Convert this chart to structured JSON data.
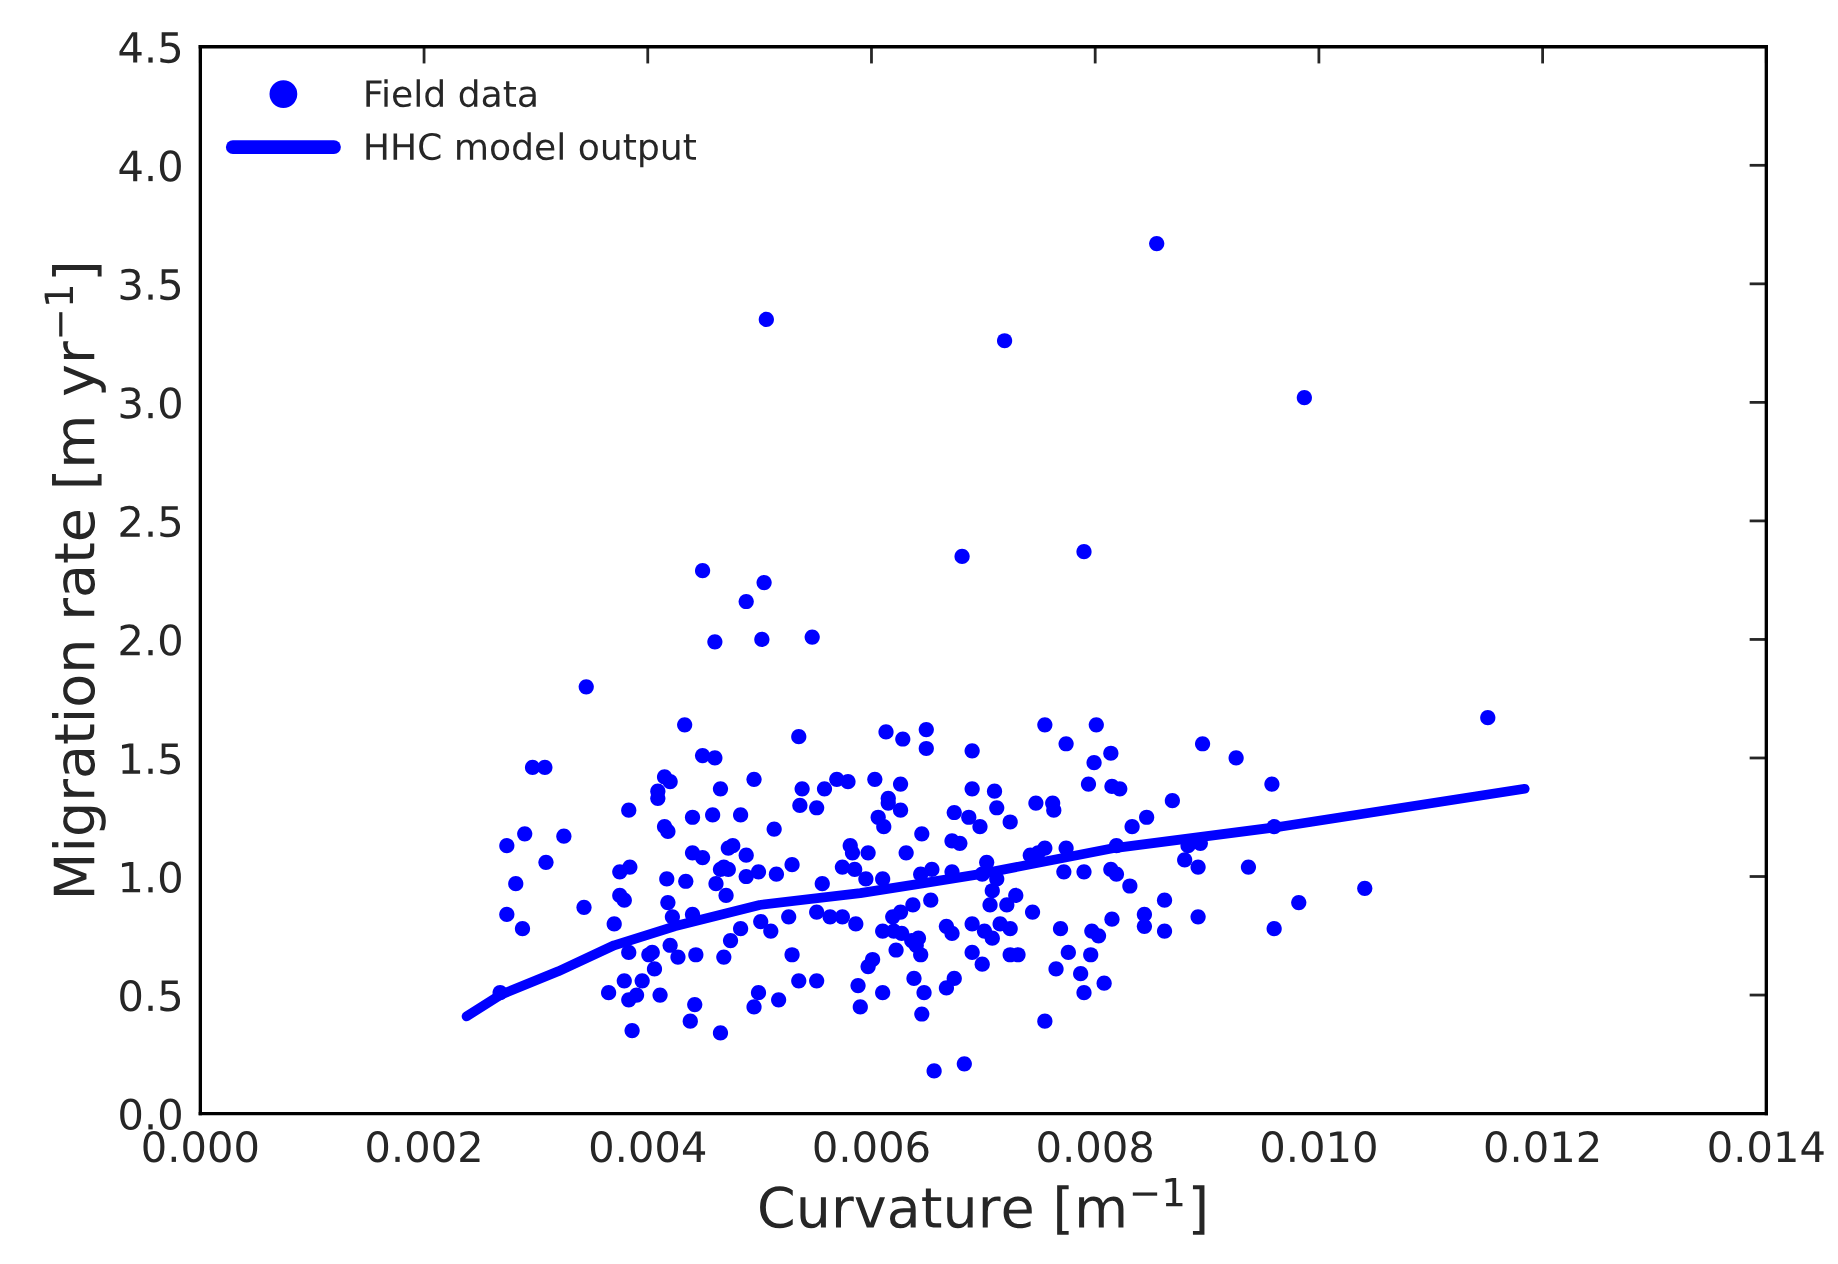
{
  "chart_data": {
    "type": "scatter",
    "xlabel": "Curvature [m$^{−1}$]",
    "ylabel": "Migration rate [m yr$^{−1}$]",
    "xlim": [
      0,
      0.014
    ],
    "ylim": [
      0,
      4.5
    ],
    "xticks": [
      {
        "value": 0,
        "label": "0.000"
      },
      {
        "value": 0.002,
        "label": "0.002"
      },
      {
        "value": 0.004,
        "label": "0.004"
      },
      {
        "value": 0.006,
        "label": "0.006"
      },
      {
        "value": 0.008,
        "label": "0.008"
      },
      {
        "value": 0.01,
        "label": "0.010"
      },
      {
        "value": 0.012,
        "label": "0.012"
      },
      {
        "value": 0.014,
        "label": "0.014"
      }
    ],
    "yticks": [
      {
        "value": 0,
        "label": "0.0"
      },
      0.5,
      {
        "value": 1,
        "label": "1.0"
      },
      1.5,
      {
        "value": 2,
        "label": "2.0"
      },
      2.5,
      {
        "value": 3,
        "label": "3.0"
      },
      3.5,
      {
        "value": 4,
        "label": "4.0"
      },
      4.5
    ],
    "grid": false,
    "legend": "top left",
    "series": [
      {
        "name": "Field data",
        "color": "#0000ff",
        "marker": "circle",
        "x": [
          0.00855,
          0.00506,
          0.00719,
          0.00987,
          0.00449,
          0.00504,
          0.00488,
          0.00547,
          0.0046,
          0.00502,
          0.00681,
          0.0079,
          0.00345,
          0.01151,
          0.00433,
          0.00535,
          0.00613,
          0.00628,
          0.00297,
          0.00308,
          0.00449,
          0.0046,
          0.00415,
          0.0042,
          0.00409,
          0.00409,
          0.00495,
          0.00465,
          0.00538,
          0.00558,
          0.00569,
          0.00579,
          0.00603,
          0.00626,
          0.00615,
          0.00615,
          0.00626,
          0.00383,
          0.0044,
          0.00458,
          0.00483,
          0.00536,
          0.00551,
          0.00606,
          0.0029,
          0.00325,
          0.00274,
          0.00415,
          0.00418,
          0.00513,
          0.00611,
          0.0044,
          0.00449,
          0.00472,
          0.00476,
          0.00488,
          0.00581,
          0.00583,
          0.00597,
          0.00631,
          0.00309,
          0.00375,
          0.00384,
          0.00465,
          0.00472,
          0.00468,
          0.00488,
          0.00499,
          0.00515,
          0.00529,
          0.00574,
          0.00585,
          0.00282,
          0.00417,
          0.00434,
          0.00461,
          0.00556,
          0.00595,
          0.0061,
          0.00375,
          0.00379,
          0.0047,
          0.00274,
          0.00343,
          0.00288,
          0.00418,
          0.00422,
          0.0044,
          0.0037,
          0.00551,
          0.00563,
          0.00574,
          0.00586,
          0.00501,
          0.0051,
          0.00526,
          0.00483,
          0.00474,
          0.00383,
          0.00401,
          0.00404,
          0.0042,
          0.00427,
          0.00443,
          0.00468,
          0.00529,
          0.00597,
          0.00601,
          0.00406,
          0.00379,
          0.00395,
          0.00365,
          0.00383,
          0.0039,
          0.00411,
          0.00535,
          0.00551,
          0.00499,
          0.00495,
          0.00517,
          0.00588,
          0.0059,
          0.0061,
          0.00442,
          0.00438,
          0.00386,
          0.00465,
          0.00268,
          0.00649,
          0.00649,
          0.00755,
          0.00801,
          0.00774,
          0.00799,
          0.00814,
          0.0069,
          0.00896,
          0.00926,
          0.00958,
          0.0069,
          0.0071,
          0.00674,
          0.00687,
          0.00697,
          0.00712,
          0.00724,
          0.00747,
          0.00762,
          0.00763,
          0.00794,
          0.00815,
          0.00822,
          0.00869,
          0.00846,
          0.00833,
          0.00645,
          0.00672,
          0.00679,
          0.00742,
          0.00749,
          0.00755,
          0.00774,
          0.00819,
          0.00883,
          0.00894,
          0.0088,
          0.0096,
          0.00644,
          0.00654,
          0.00672,
          0.00699,
          0.00703,
          0.00712,
          0.00772,
          0.0079,
          0.00814,
          0.00819,
          0.00892,
          0.00937,
          0.00831,
          0.00708,
          0.00729,
          0.00706,
          0.00721,
          0.00744,
          0.00653,
          0.00637,
          0.00626,
          0.00619,
          0.0061,
          0.00862,
          0.00844,
          0.00844,
          0.00892,
          0.00862,
          0.00982,
          0.0096,
          0.0069,
          0.00701,
          0.00715,
          0.00724,
          0.00708,
          0.00667,
          0.00672,
          0.0062,
          0.00627,
          0.00636,
          0.00642,
          0.00622,
          0.0064,
          0.00644,
          0.00769,
          0.00797,
          0.00803,
          0.00815,
          0.0069,
          0.00699,
          0.00724,
          0.00731,
          0.00776,
          0.00765,
          0.00796,
          0.00787,
          0.00808,
          0.0079,
          0.00638,
          0.00647,
          0.00674,
          0.00667,
          0.00645,
          0.00755,
          0.00656,
          0.00683,
          0.01041
        ],
        "values": [
          3.67,
          3.35,
          3.26,
          3.02,
          2.29,
          2.24,
          2.16,
          2.01,
          1.99,
          2.0,
          2.35,
          2.37,
          1.8,
          1.67,
          1.64,
          1.59,
          1.61,
          1.58,
          1.46,
          1.46,
          1.51,
          1.5,
          1.42,
          1.4,
          1.36,
          1.33,
          1.41,
          1.37,
          1.37,
          1.37,
          1.41,
          1.4,
          1.41,
          1.39,
          1.33,
          1.31,
          1.28,
          1.28,
          1.25,
          1.26,
          1.26,
          1.3,
          1.29,
          1.25,
          1.18,
          1.17,
          1.13,
          1.21,
          1.19,
          1.2,
          1.21,
          1.1,
          1.08,
          1.12,
          1.13,
          1.09,
          1.13,
          1.1,
          1.1,
          1.1,
          1.06,
          1.02,
          1.04,
          1.03,
          1.03,
          1.04,
          1.0,
          1.02,
          1.01,
          1.05,
          1.04,
          1.03,
          0.97,
          0.99,
          0.98,
          0.97,
          0.97,
          0.99,
          0.99,
          0.92,
          0.9,
          0.92,
          0.84,
          0.87,
          0.78,
          0.89,
          0.83,
          0.84,
          0.8,
          0.85,
          0.83,
          0.83,
          0.8,
          0.81,
          0.77,
          0.83,
          0.78,
          0.73,
          0.68,
          0.67,
          0.68,
          0.71,
          0.66,
          0.67,
          0.66,
          0.67,
          0.62,
          0.65,
          0.61,
          0.56,
          0.56,
          0.51,
          0.48,
          0.5,
          0.5,
          0.56,
          0.56,
          0.51,
          0.45,
          0.48,
          0.54,
          0.45,
          0.51,
          0.46,
          0.39,
          0.35,
          0.34,
          0.51,
          1.62,
          1.54,
          1.64,
          1.64,
          1.56,
          1.48,
          1.52,
          1.53,
          1.56,
          1.5,
          1.39,
          1.37,
          1.36,
          1.27,
          1.25,
          1.21,
          1.29,
          1.23,
          1.31,
          1.31,
          1.28,
          1.39,
          1.38,
          1.37,
          1.32,
          1.25,
          1.21,
          1.18,
          1.15,
          1.14,
          1.09,
          1.1,
          1.12,
          1.12,
          1.13,
          1.13,
          1.14,
          1.07,
          1.21,
          1.01,
          1.03,
          1.02,
          1.01,
          1.06,
          0.99,
          1.02,
          1.02,
          1.03,
          1.01,
          1.04,
          1.04,
          0.96,
          0.94,
          0.92,
          0.88,
          0.88,
          0.85,
          0.9,
          0.88,
          0.85,
          0.83,
          0.77,
          0.9,
          0.84,
          0.79,
          0.83,
          0.77,
          0.89,
          0.78,
          0.8,
          0.77,
          0.8,
          0.78,
          0.74,
          0.79,
          0.76,
          0.77,
          0.76,
          0.73,
          0.74,
          0.69,
          0.71,
          0.67,
          0.78,
          0.77,
          0.75,
          0.82,
          0.68,
          0.63,
          0.67,
          0.67,
          0.68,
          0.61,
          0.67,
          0.59,
          0.55,
          0.51,
          0.57,
          0.51,
          0.57,
          0.53,
          0.42,
          0.39,
          0.18,
          0.21,
          0.95
        ]
      },
      {
        "name": "HHC model output",
        "type": "line",
        "color": "#0000ff",
        "line_style": "solid",
        "x": [
          0.00238,
          0.00268,
          0.0032,
          0.0037,
          0.00424,
          0.005,
          0.0059,
          0.00644,
          0.00697,
          0.00817,
          0.00965,
          0.01184
        ],
        "values": [
          0.41,
          0.5,
          0.6,
          0.71,
          0.79,
          0.88,
          0.93,
          0.97,
          1.01,
          1.12,
          1.21,
          1.37
        ]
      }
    ]
  }
}
